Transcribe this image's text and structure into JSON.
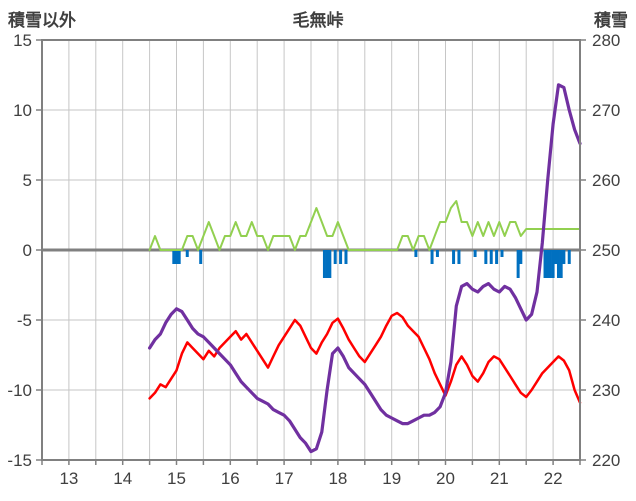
{
  "chart_data": {
    "type": "line",
    "title": "毛無峠",
    "x_range": [
      12.5,
      22.5
    ],
    "x_ticks": [
      13,
      14,
      15,
      16,
      17,
      18,
      19,
      20,
      21,
      22
    ],
    "left_axis": {
      "label": "積雪以外",
      "range": [
        -15,
        15
      ],
      "ticks": [
        15,
        10,
        5,
        0,
        -5,
        -10,
        -15
      ]
    },
    "right_axis": {
      "label": "積雪",
      "range": [
        220,
        280
      ],
      "ticks": [
        280,
        270,
        260,
        250,
        240,
        230,
        220
      ]
    },
    "grid": {
      "x_step": 0.5,
      "color": "#c6c6c6",
      "zero_line_color": "#808080",
      "frame_color": "#808080"
    },
    "series": [
      {
        "name": "blue-bars",
        "type": "bar",
        "axis": "left",
        "color": "#0070c0",
        "points": [
          [
            14.95,
            -1
          ],
          [
            15.0,
            -1
          ],
          [
            15.05,
            -1
          ],
          [
            15.2,
            -0.5
          ],
          [
            15.45,
            -1
          ],
          [
            17.75,
            -2
          ],
          [
            17.8,
            -2
          ],
          [
            17.85,
            -2
          ],
          [
            17.95,
            -1
          ],
          [
            18.05,
            -1
          ],
          [
            18.15,
            -1
          ],
          [
            19.45,
            -0.5
          ],
          [
            19.75,
            -1
          ],
          [
            19.85,
            -0.5
          ],
          [
            20.15,
            -1
          ],
          [
            20.25,
            -1
          ],
          [
            20.55,
            -0.5
          ],
          [
            20.75,
            -1
          ],
          [
            20.85,
            -1
          ],
          [
            20.95,
            -1
          ],
          [
            21.05,
            -0.5
          ],
          [
            21.35,
            -2
          ],
          [
            21.4,
            -1
          ],
          [
            21.85,
            -2
          ],
          [
            21.9,
            -2
          ],
          [
            21.95,
            -2
          ],
          [
            22.0,
            -2
          ],
          [
            22.05,
            -1
          ],
          [
            22.1,
            -2
          ],
          [
            22.15,
            -2
          ],
          [
            22.2,
            -1
          ],
          [
            22.3,
            -1
          ]
        ]
      },
      {
        "name": "green-line",
        "axis": "left",
        "color": "#92d050",
        "width": 2,
        "x_start": 14.5,
        "x_step": 0.1,
        "values": [
          0,
          1,
          0,
          0,
          0,
          0,
          0,
          1,
          1,
          0,
          1,
          2,
          1,
          0,
          1,
          1,
          2,
          1,
          1,
          2,
          1,
          1,
          0,
          1,
          1,
          1,
          1,
          0,
          1,
          1,
          2,
          3,
          2,
          1,
          1,
          2,
          1,
          0,
          0,
          0,
          0,
          0,
          0,
          0,
          0,
          0,
          0,
          1,
          1,
          0,
          1,
          1,
          0,
          1,
          2,
          2,
          3,
          3.5,
          2,
          2,
          1,
          2,
          1,
          2,
          1,
          2,
          1,
          2,
          2,
          1,
          1.5,
          1.5,
          1.5,
          1.5,
          1.5,
          1.5,
          1.5,
          1.5,
          1.5,
          1.5,
          1.5
        ]
      },
      {
        "name": "red-line",
        "axis": "left",
        "color": "#ff0000",
        "width": 2.5,
        "x_start": 14.5,
        "x_step": 0.1,
        "values": [
          -10.6,
          -10.2,
          -9.6,
          -9.8,
          -9.2,
          -8.6,
          -7.4,
          -6.6,
          -7.0,
          -7.4,
          -7.8,
          -7.2,
          -7.6,
          -7.0,
          -6.6,
          -6.2,
          -5.8,
          -6.4,
          -6.0,
          -6.6,
          -7.2,
          -7.8,
          -8.4,
          -7.6,
          -6.8,
          -6.2,
          -5.6,
          -5.0,
          -5.4,
          -6.2,
          -7.0,
          -7.4,
          -6.6,
          -6.0,
          -5.2,
          -4.9,
          -5.6,
          -6.4,
          -7.0,
          -7.6,
          -8.0,
          -7.4,
          -6.8,
          -6.2,
          -5.4,
          -4.7,
          -4.5,
          -4.8,
          -5.4,
          -5.8,
          -6.2,
          -7.0,
          -7.8,
          -8.8,
          -9.6,
          -10.4,
          -9.4,
          -8.2,
          -7.6,
          -8.2,
          -9.0,
          -9.4,
          -8.8,
          -8.0,
          -7.6,
          -7.8,
          -8.4,
          -9.0,
          -9.6,
          -10.2,
          -10.5,
          -10.0,
          -9.4,
          -8.8,
          -8.4,
          -8.0,
          -7.6,
          -7.9,
          -8.6,
          -10.0,
          -10.9
        ]
      },
      {
        "name": "purple-line",
        "axis": "right",
        "color": "#7030a0",
        "width": 3.2,
        "x_start": 14.5,
        "x_step": 0.1,
        "values": [
          236.0,
          237.2,
          238.0,
          239.6,
          240.8,
          241.6,
          241.2,
          240.0,
          238.8,
          238.0,
          237.6,
          236.8,
          236.0,
          235.2,
          234.4,
          233.6,
          232.4,
          231.2,
          230.4,
          229.6,
          228.8,
          228.4,
          228.0,
          227.2,
          226.8,
          226.4,
          225.6,
          224.4,
          223.2,
          222.4,
          221.2,
          221.6,
          224.0,
          230.0,
          235.2,
          236.0,
          234.8,
          233.2,
          232.4,
          231.6,
          230.8,
          229.6,
          228.4,
          227.2,
          226.4,
          226.0,
          225.6,
          225.2,
          225.2,
          225.6,
          226.0,
          226.4,
          226.4,
          226.8,
          227.6,
          229.6,
          234.0,
          242.0,
          244.8,
          245.2,
          244.4,
          244.0,
          244.8,
          245.2,
          244.4,
          244.0,
          244.8,
          244.4,
          243.2,
          241.6,
          240.0,
          240.8,
          244.0,
          251.0,
          260.0,
          268.0,
          273.6,
          273.2,
          270.0,
          267.2,
          265.2
        ]
      }
    ]
  }
}
